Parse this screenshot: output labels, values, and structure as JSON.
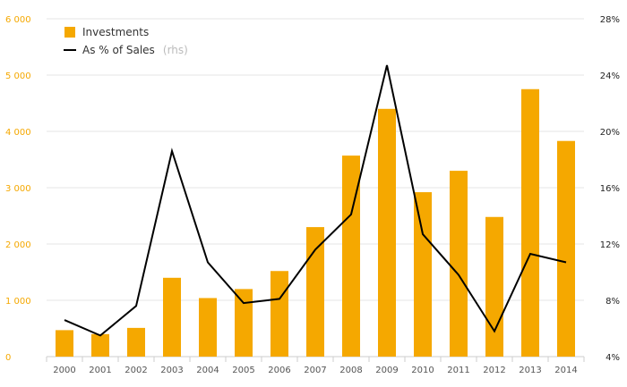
{
  "chart_data": {
    "type": "bar+line",
    "categories": [
      "2000",
      "2001",
      "2002",
      "2003",
      "2004",
      "2005",
      "2006",
      "2007",
      "2008",
      "2009",
      "2010",
      "2011",
      "2012",
      "2013",
      "2014"
    ],
    "series": [
      {
        "name": "Investments",
        "type": "bar",
        "axis": "left",
        "color": "#f5a800",
        "values": [
          470,
          400,
          510,
          1400,
          1040,
          1200,
          1520,
          2300,
          3570,
          4400,
          2920,
          3300,
          2480,
          4750,
          3830
        ]
      },
      {
        "name": "As % of Sales",
        "note": "(rhs)",
        "type": "line",
        "axis": "right",
        "color": "#000000",
        "values": [
          6.6,
          5.5,
          7.6,
          18.6,
          10.7,
          7.8,
          8.1,
          11.6,
          14.1,
          24.7,
          12.7,
          9.8,
          5.8,
          11.3,
          10.7
        ]
      }
    ],
    "y_left": {
      "min": 0,
      "max": 6000,
      "ticks": [
        0,
        1000,
        2000,
        3000,
        4000,
        5000,
        6000
      ],
      "tick_labels": [
        "0",
        "1 000",
        "2 000",
        "3 000",
        "4 000",
        "5 000",
        "6 000"
      ],
      "color": "#f5a800"
    },
    "y_right": {
      "min": 4,
      "max": 28,
      "ticks": [
        4,
        8,
        12,
        16,
        20,
        24,
        28
      ],
      "tick_labels": [
        "4%",
        "8%",
        "12%",
        "16%",
        "20%",
        "24%",
        "28%"
      ],
      "color": "#222222"
    },
    "grid": true,
    "legend_position": "top-left"
  }
}
